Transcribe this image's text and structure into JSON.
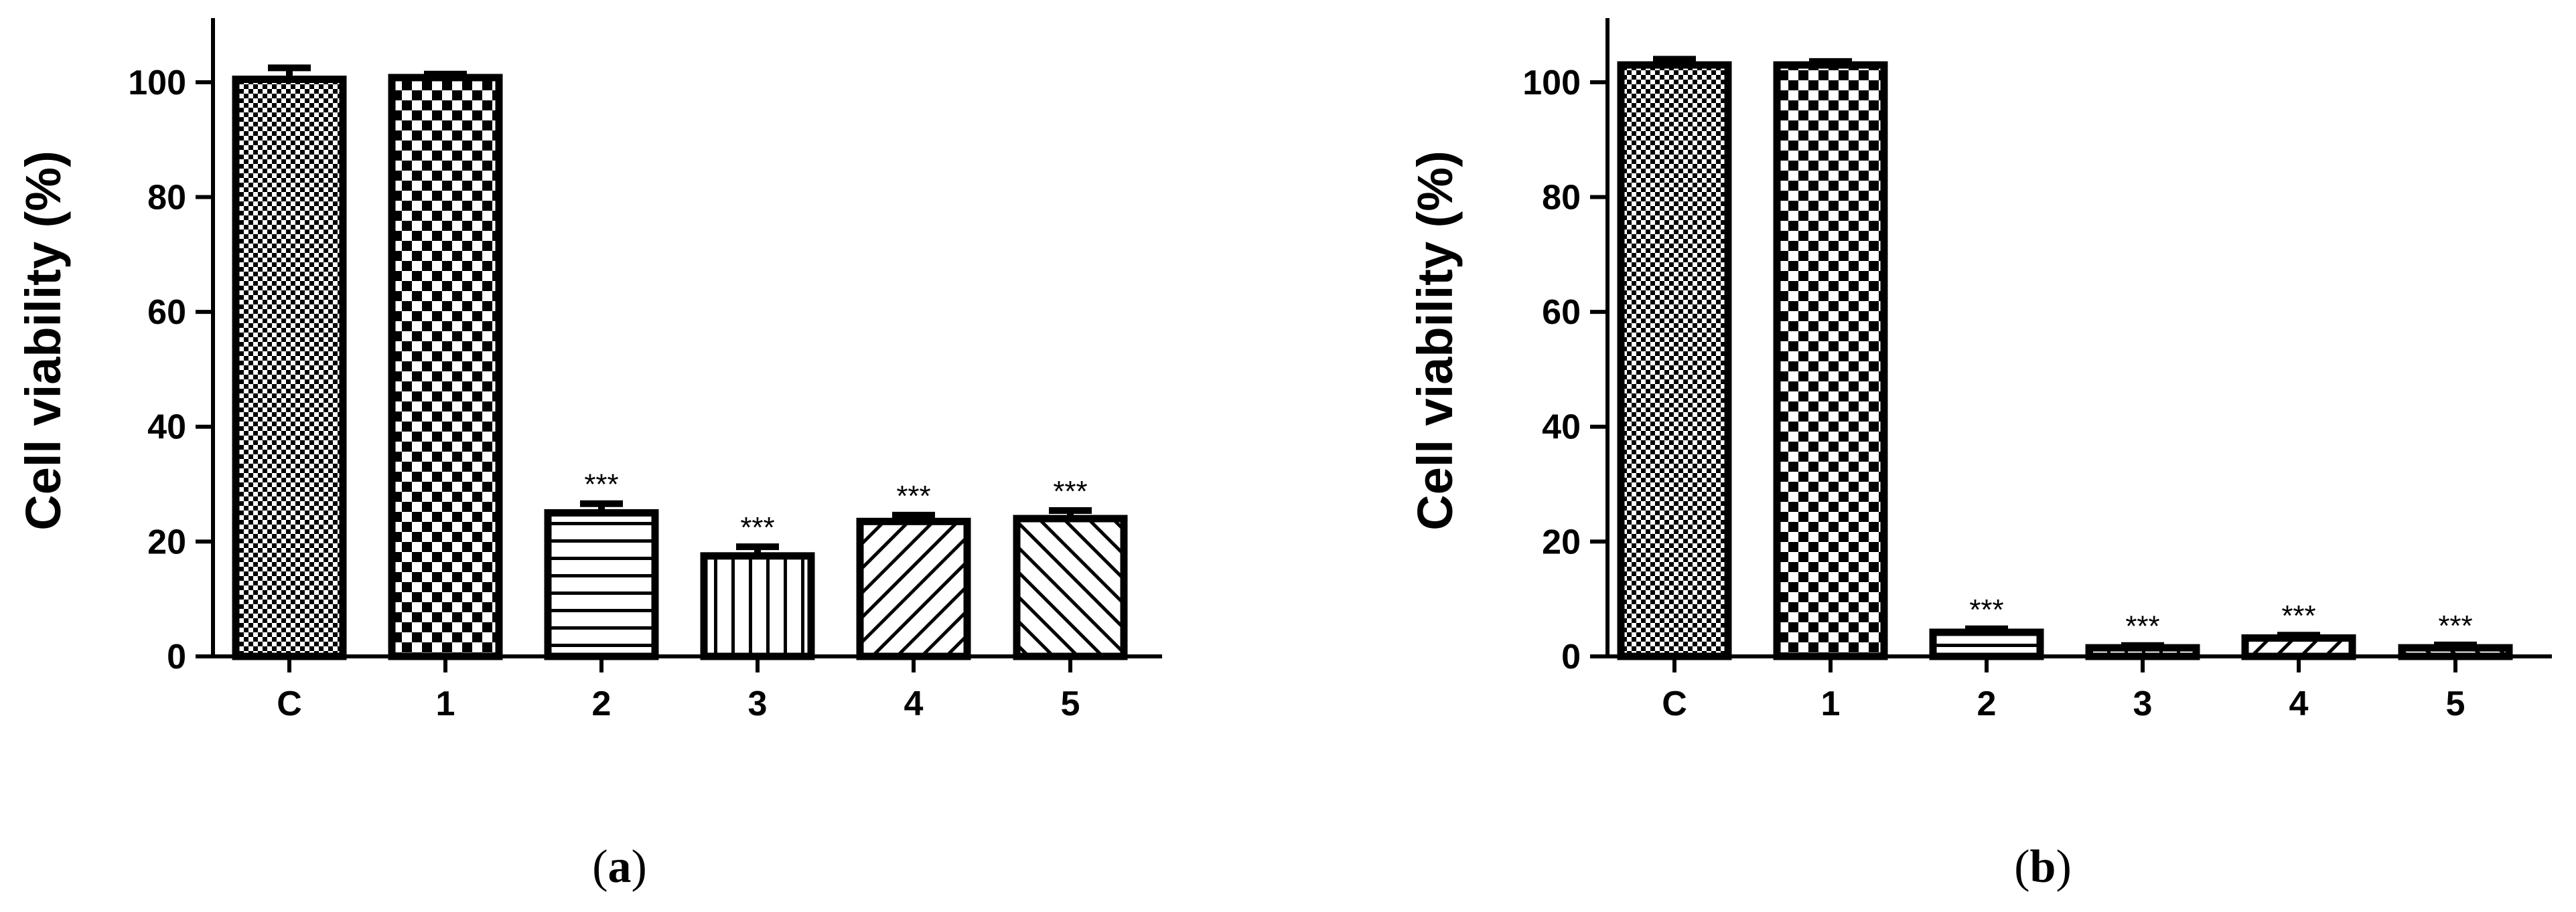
{
  "chart_data": [
    {
      "type": "bar",
      "panel_label": "a",
      "ylabel": "Cell viability (%)",
      "categories": [
        "C",
        "1",
        "2",
        "3",
        "4",
        "5"
      ],
      "values": [
        100.5,
        100.8,
        25.0,
        17.5,
        23.5,
        24.0
      ],
      "errors": [
        2.0,
        0.6,
        1.6,
        1.6,
        1.1,
        1.4
      ],
      "annotations": [
        "",
        "",
        "***",
        "***",
        "***",
        "***"
      ],
      "patterns": [
        "fine-check",
        "coarse-check",
        "horizontal",
        "vertical",
        "diagonal-right",
        "diagonal-left"
      ],
      "yticks": [
        0,
        20,
        40,
        60,
        80,
        100
      ],
      "ylim": [
        0,
        110
      ],
      "grid": false
    },
    {
      "type": "bar",
      "panel_label": "b",
      "ylabel": "Cell viability (%)",
      "categories": [
        "C",
        "1",
        "2",
        "3",
        "4",
        "5"
      ],
      "values": [
        103.0,
        103.0,
        4.2,
        1.5,
        3.2,
        1.5
      ],
      "errors": [
        1.0,
        0.6,
        0.6,
        0.4,
        0.5,
        0.5
      ],
      "annotations": [
        "",
        "",
        "***",
        "***",
        "***",
        "***"
      ],
      "patterns": [
        "fine-check",
        "coarse-check",
        "horizontal",
        "vertical",
        "diagonal-right",
        "diagonal-left"
      ],
      "yticks": [
        0,
        20,
        40,
        60,
        80,
        100
      ],
      "ylim": [
        0,
        110
      ],
      "grid": false
    }
  ]
}
